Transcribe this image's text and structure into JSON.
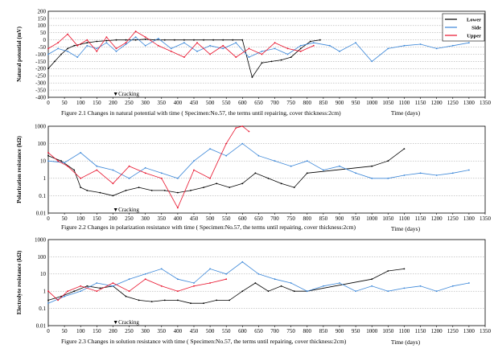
{
  "figure": {
    "legend": [
      {
        "name": "Lower",
        "color": "#000000"
      },
      {
        "name": "Side",
        "color": "#3a86d8"
      },
      {
        "name": "Upper",
        "color": "#e8102a"
      }
    ]
  },
  "chart_data": [
    {
      "type": "line",
      "caption": "Figure 2.1   Changes in natural potential with time ( Specimen:No.57, the terms until repairing, cover thickness:2cm)",
      "xlabel": "Time (days)",
      "ylabel": "Natural potential (mV)",
      "xlim": [
        0,
        1350
      ],
      "ylim": [
        -400,
        200
      ],
      "xscale": "linear",
      "yscale": "linear",
      "xticks": [
        "0",
        "50",
        "100",
        "150",
        "200",
        "250",
        "300",
        "350",
        "400",
        "450",
        "500",
        "550",
        "600",
        "650",
        "700",
        "750",
        "800",
        "850",
        "900",
        "950",
        "1000",
        "1050",
        "1100",
        "1150",
        "1200",
        "1250",
        "1300",
        "1350"
      ],
      "yticks": [
        "200",
        "150",
        "100",
        "50",
        "0",
        "-50",
        "-100",
        "-150",
        "-200",
        "-250",
        "-300",
        "-350",
        "-400"
      ],
      "annotation": {
        "text": "▼Cracking",
        "x": 240
      },
      "grid": true,
      "series": [
        {
          "name": "Lower",
          "color": "#000000",
          "x": [
            0,
            20,
            40,
            60,
            80,
            100,
            120,
            150,
            180,
            210,
            240,
            270,
            300,
            330,
            360,
            390,
            420,
            450,
            480,
            510,
            540,
            570,
            600,
            630,
            660,
            690,
            720,
            750,
            780,
            810,
            840
          ],
          "y": [
            -200,
            -150,
            -100,
            -60,
            -40,
            -30,
            -20,
            -10,
            -5,
            0,
            0,
            0,
            5,
            0,
            0,
            0,
            0,
            0,
            0,
            0,
            0,
            0,
            0,
            -260,
            -160,
            -150,
            -140,
            -120,
            -60,
            -10,
            0
          ]
        },
        {
          "name": "Side",
          "color": "#3a86d8",
          "x": [
            0,
            30,
            60,
            90,
            120,
            150,
            180,
            210,
            240,
            270,
            300,
            340,
            380,
            420,
            460,
            500,
            540,
            580,
            620,
            660,
            700,
            740,
            780,
            820,
            870,
            900,
            950,
            1000,
            1050,
            1100,
            1150,
            1200,
            1250,
            1300
          ],
          "y": [
            -100,
            -60,
            -80,
            -120,
            -40,
            -60,
            -20,
            -80,
            -30,
            20,
            -40,
            10,
            -60,
            -20,
            -80,
            -40,
            -60,
            -20,
            -120,
            -80,
            -60,
            -100,
            -40,
            -20,
            -40,
            -80,
            -20,
            -150,
            -60,
            -40,
            -30,
            -60,
            -40,
            -20
          ]
        },
        {
          "name": "Upper",
          "color": "#e8102a",
          "x": [
            0,
            30,
            60,
            90,
            120,
            150,
            180,
            210,
            240,
            270,
            300,
            340,
            380,
            420,
            460,
            500,
            540,
            580,
            620,
            660,
            700,
            740,
            780,
            820
          ],
          "y": [
            -60,
            -20,
            40,
            -40,
            0,
            -80,
            20,
            -60,
            -20,
            60,
            20,
            -40,
            -80,
            -120,
            -20,
            -100,
            -40,
            -120,
            -60,
            -100,
            -20,
            -60,
            -80,
            -40
          ]
        }
      ]
    },
    {
      "type": "line",
      "caption": "Figure 2.2    Changes in polarization resistance with time ( Specimen:No.57, the terms until repairing, cover thickness:2cm)",
      "xlabel": "Time (days)",
      "ylabel": "Polarization resistance (kΩ)",
      "xlim": [
        0,
        1350
      ],
      "ylim": [
        0.01,
        1000
      ],
      "xscale": "linear",
      "yscale": "log",
      "xticks": [
        "0",
        "50",
        "100",
        "150",
        "200",
        "250",
        "300",
        "350",
        "400",
        "450",
        "500",
        "550",
        "600",
        "650",
        "700",
        "750",
        "800",
        "850",
        "900",
        "950",
        "1000",
        "1050",
        "1100",
        "1150",
        "1200",
        "1250",
        "1300",
        "1350"
      ],
      "yticks": [
        "1000",
        "100",
        "10",
        "1",
        "0.1",
        "0.01"
      ],
      "annotation": {
        "text": "▼Cracking",
        "x": 240
      },
      "grid": true,
      "series": [
        {
          "name": "Lower",
          "color": "#000000",
          "x": [
            0,
            40,
            80,
            100,
            120,
            160,
            200,
            240,
            280,
            320,
            360,
            400,
            440,
            480,
            520,
            560,
            600,
            640,
            680,
            720,
            760,
            800,
            1000,
            1050,
            1100
          ],
          "y": [
            20,
            10,
            3,
            0.3,
            0.2,
            0.15,
            0.1,
            0.2,
            0.3,
            0.2,
            0.2,
            0.15,
            0.2,
            0.3,
            0.5,
            0.3,
            0.5,
            2,
            1,
            0.5,
            0.3,
            2,
            5,
            10,
            50
          ]
        },
        {
          "name": "Side",
          "color": "#3a86d8",
          "x": [
            0,
            50,
            100,
            150,
            200,
            250,
            300,
            350,
            400,
            450,
            500,
            550,
            600,
            650,
            700,
            750,
            800,
            850,
            900,
            950,
            1000,
            1050,
            1100,
            1150,
            1200,
            1250,
            1300
          ],
          "y": [
            10,
            8,
            30,
            5,
            3,
            1,
            4,
            2,
            1,
            10,
            50,
            20,
            100,
            20,
            10,
            5,
            10,
            3,
            5,
            2,
            1,
            1,
            1.5,
            2,
            1.5,
            2,
            3
          ]
        },
        {
          "name": "Upper",
          "color": "#e8102a",
          "x": [
            0,
            30,
            60,
            100,
            150,
            200,
            250,
            300,
            350,
            400,
            450,
            500,
            550,
            580,
            600,
            620
          ],
          "y": [
            30,
            10,
            5,
            1,
            3,
            0.5,
            5,
            2,
            1,
            0.02,
            3,
            1,
            100,
            800,
            1000,
            500
          ]
        }
      ]
    },
    {
      "type": "line",
      "caption": "Figure 2.3    Changes in solution resistance with time ( Specimen:No.57, the terms until repairing, cover thickness:2cm)",
      "xlabel": "Time (days)",
      "ylabel": "Electrolyte resistance (kΩ)",
      "xlim": [
        0,
        1350
      ],
      "ylim": [
        0.01,
        1000
      ],
      "xscale": "linear",
      "yscale": "log",
      "xticks": [
        "0",
        "50",
        "100",
        "150",
        "200",
        "250",
        "300",
        "350",
        "400",
        "450",
        "500",
        "550",
        "600",
        "650",
        "700",
        "750",
        "800",
        "850",
        "900",
        "950",
        "1000",
        "1050",
        "1100",
        "1150",
        "1200",
        "1250",
        "1300",
        "1350"
      ],
      "yticks": [
        "1000",
        "100",
        "10",
        "1",
        "0.1",
        "0.01"
      ],
      "annotation": {
        "text": "▼Cracking",
        "x": 240
      },
      "grid": true,
      "series": [
        {
          "name": "Lower",
          "color": "#000000",
          "x": [
            0,
            40,
            80,
            120,
            160,
            200,
            240,
            280,
            320,
            360,
            400,
            440,
            480,
            520,
            560,
            600,
            640,
            680,
            720,
            760,
            800,
            1000,
            1050,
            1100
          ],
          "y": [
            0.3,
            0.5,
            1,
            2,
            1.5,
            2,
            0.5,
            0.3,
            0.25,
            0.3,
            0.3,
            0.2,
            0.2,
            0.3,
            0.3,
            1,
            3,
            1,
            2,
            1,
            1,
            5,
            15,
            20
          ]
        },
        {
          "name": "Side",
          "color": "#3a86d8",
          "x": [
            0,
            50,
            100,
            150,
            200,
            250,
            300,
            350,
            400,
            450,
            500,
            550,
            600,
            650,
            700,
            750,
            800,
            850,
            900,
            950,
            1000,
            1050,
            1100,
            1150,
            1200,
            1250,
            1300
          ],
          "y": [
            0.2,
            0.5,
            1,
            3,
            2,
            5,
            10,
            20,
            5,
            3,
            20,
            10,
            50,
            10,
            5,
            3,
            1,
            2,
            3,
            1,
            2,
            1,
            1.5,
            2,
            1,
            2,
            3
          ]
        },
        {
          "name": "Upper",
          "color": "#e8102a",
          "x": [
            0,
            30,
            60,
            100,
            150,
            200,
            250,
            300,
            350,
            400,
            450,
            500,
            550
          ],
          "y": [
            1,
            0.3,
            1,
            2,
            1,
            3,
            1,
            5,
            2,
            1,
            2,
            3,
            5
          ]
        }
      ]
    }
  ]
}
